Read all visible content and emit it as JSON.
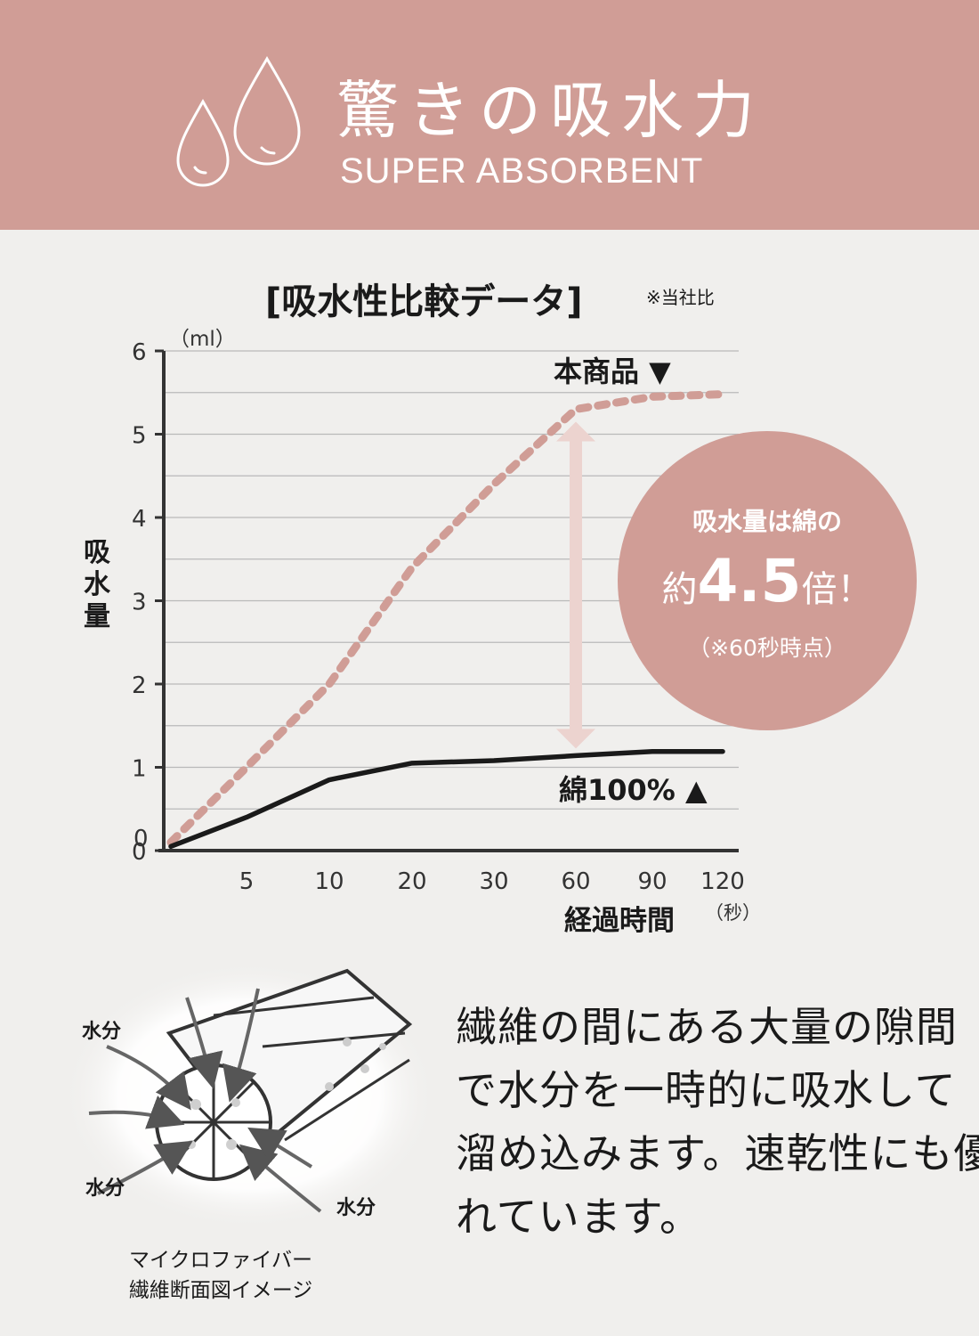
{
  "header": {
    "title": "驚きの吸水力",
    "subtitle": "SUPER ABSORBENT"
  },
  "chart_data": {
    "type": "line",
    "title": "[吸水性比較データ]",
    "note": "※当社比",
    "ylabel": "吸水量",
    "yunit": "（ml）",
    "xlabel": "経過時間",
    "xunit": "（秒）",
    "ylim": [
      0,
      6
    ],
    "yticks": [
      "0",
      "1",
      "2",
      "3",
      "4",
      "5",
      "6"
    ],
    "x": [
      "0",
      "5",
      "10",
      "20",
      "30",
      "60",
      "90",
      "120"
    ],
    "xtick_labels": [
      "5",
      "10",
      "20",
      "30",
      "60",
      "90",
      "120"
    ],
    "grid": true,
    "series": [
      {
        "name": "本商品 ▼",
        "style": "dashed",
        "color": "#d09d96",
        "values": [
          0.1,
          1.0,
          2.0,
          3.4,
          4.4,
          5.3,
          5.45,
          5.48
        ]
      },
      {
        "name": "綿100% ▲",
        "style": "solid",
        "color": "#1a1a1a",
        "values": [
          0.05,
          0.4,
          0.85,
          1.05,
          1.08,
          1.14,
          1.19,
          1.19
        ]
      }
    ]
  },
  "callout": {
    "line1": "吸水量は綿の",
    "prefix": "約",
    "number": "4.5",
    "suffix": "倍！",
    "note": "（※60秒時点）"
  },
  "fiber": {
    "water_label": "水分",
    "caption_line1": "マイクロファイバー",
    "caption_line2": "繊維断面図イメージ"
  },
  "description": {
    "lines": [
      "繊維の間にある大量の隙間",
      "で水分を一時的に吸水して",
      "溜め込みます。速乾性にも優",
      "れています。"
    ]
  },
  "colors": {
    "accent": "#d09d96",
    "background": "#f0efed",
    "arrow": "#ecd3cf"
  }
}
